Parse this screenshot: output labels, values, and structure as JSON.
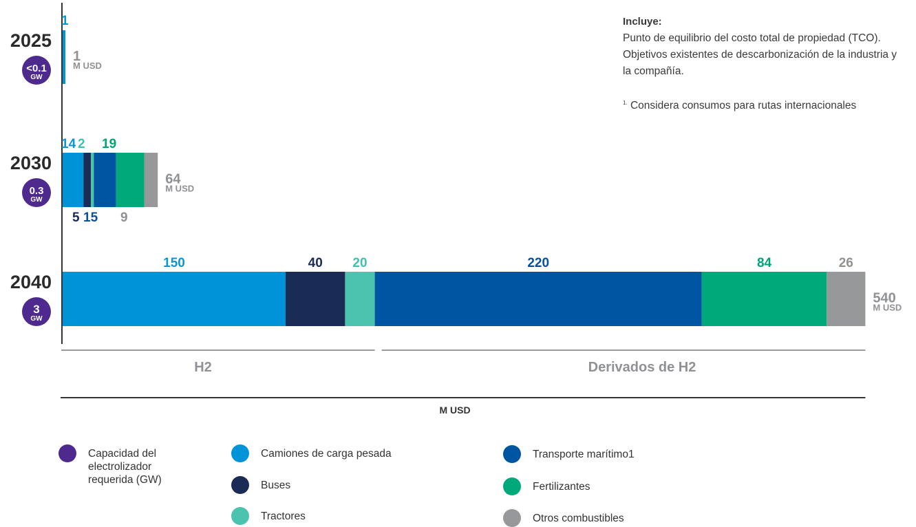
{
  "chart_data": {
    "type": "bar",
    "orientation": "horizontal",
    "stacked": true,
    "unit": "M USD",
    "categories": [
      "2025",
      "2030",
      "2040"
    ],
    "capacity_labels": [
      "<0.1",
      "0.3",
      "3"
    ],
    "capacity_unit": "GW",
    "totals": [
      1,
      64,
      540
    ],
    "total_unit": "M USD",
    "series": [
      {
        "name": "Camiones de carga pesada",
        "color": "#0093d8",
        "label_color": "#0a96d6",
        "values": [
          1,
          14,
          150
        ]
      },
      {
        "name": "Buses",
        "color": "#1a2b56",
        "label_color": "#1a2b56",
        "values": [
          0,
          5,
          40
        ]
      },
      {
        "name": "Tractores",
        "color": "#4cc3ae",
        "label_color": "#41c0ad",
        "values": [
          0,
          2,
          20
        ]
      },
      {
        "name": "Transporte marítimo1",
        "color": "#0055a3",
        "label_color": "#0a4f99",
        "values": [
          0,
          15,
          220
        ]
      },
      {
        "name": "Fertilizantes",
        "color": "#00a97a",
        "label_color": "#00a377",
        "values": [
          0,
          19,
          84
        ]
      },
      {
        "name": "Otros combustibles",
        "color": "#97989a",
        "label_color": "#8f9194",
        "values": [
          0,
          9,
          26
        ]
      }
    ],
    "groups": [
      {
        "label": "H2",
        "series_from": 0,
        "series_to": 2
      },
      {
        "label": "Derivados de H2",
        "series_from": 3,
        "series_to": 5
      }
    ],
    "axis_label": "M USD",
    "legend": {
      "position": "bottom"
    }
  },
  "capacity_legend": {
    "label": "Capacidad del electrolizador requerida (GW)",
    "color": "#4e2a8e"
  },
  "note": {
    "title": "Incluye:",
    "lines": [
      "Punto de equilibrio del costo total de propiedad (TCO).",
      "Objetivos existentes de descarbonización de la industria y la compañía."
    ],
    "footnote_marker": "1.",
    "footnote": "Considera consumos para rutas internacionales"
  },
  "colors": {
    "axis": "#333333",
    "group_line": "#9a9a9a",
    "capacity": "#4e2a8e",
    "total_text": "#8f9194"
  }
}
